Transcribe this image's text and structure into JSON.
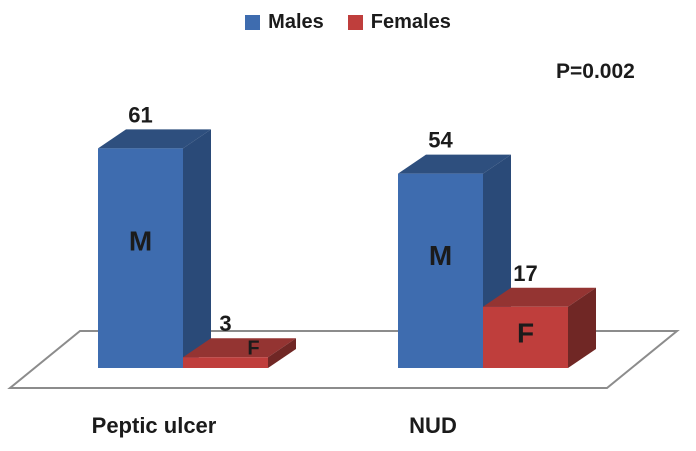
{
  "chart_data": {
    "type": "bar",
    "variant": "3d-clustered-column",
    "title": "",
    "categories": [
      "Peptic ulcer",
      "NUD"
    ],
    "series": [
      {
        "name": "Males",
        "bar_letter": "M",
        "values": [
          61,
          54
        ],
        "color_front": "#3E6CAF",
        "color_top": "#2E4F7E",
        "color_side": "#2A4A78"
      },
      {
        "name": "Females",
        "bar_letter": "F",
        "values": [
          3,
          17
        ],
        "color_front": "#BF3E3C",
        "color_top": "#943432",
        "color_side": "#702725"
      }
    ],
    "annotation": "P=0.002",
    "legend_position": "top",
    "value_axis_visible": false,
    "gridlines": false,
    "floor_outline_color": "#8C8C8C",
    "text_color": "#1B1B1B",
    "background": "#FFFFFF"
  }
}
